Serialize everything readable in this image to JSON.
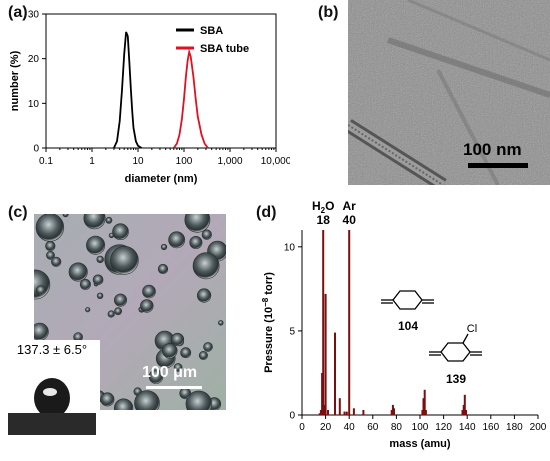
{
  "panels": {
    "a": {
      "letter": "(a)",
      "chart_data": {
        "type": "line",
        "xscale": "log",
        "xlim": [
          0.1,
          10000
        ],
        "ylim": [
          0,
          30
        ],
        "xticks": [
          "0.1",
          "1",
          "10",
          "100",
          "1,000",
          "10,000"
        ],
        "yticks": [
          "0",
          "10",
          "20",
          "30"
        ],
        "xlabel": "diameter (nm)",
        "ylabel": "number (%)",
        "legend_position": "top-right",
        "series": [
          {
            "name": "SBA",
            "color": "#000000",
            "x": [
              3.0,
              3.5,
              4.0,
              4.5,
              5.0,
              5.5,
              6.0,
              6.5,
              7.0,
              7.5,
              8.0,
              9.0,
              10.0,
              12.0
            ],
            "y": [
              0,
              1.5,
              6,
              13,
              21,
              26,
              25,
              19,
              13,
              8,
              4.5,
              1.5,
              0.5,
              0
            ]
          },
          {
            "name": "SBA tube",
            "color": "#e01020",
            "x": [
              60,
              70,
              80,
              90,
              100,
              110,
              120,
              130,
              140,
              160,
              180,
              200,
              240,
              280,
              330
            ],
            "y": [
              0,
              1,
              3,
              6.5,
              11,
              16,
              19.5,
              21.5,
              20.5,
              16,
              11,
              7,
              3,
              1,
              0
            ]
          }
        ]
      }
    },
    "b": {
      "letter": "(b)",
      "scale_bar": "100 nm"
    },
    "c": {
      "letter": "(c)",
      "scale_bar": "100 μm",
      "contact_angle": "137.3 ± 6.5°"
    },
    "d": {
      "letter": "(d)",
      "chart_data": {
        "type": "bar",
        "xlim": [
          0,
          200
        ],
        "ylim": [
          0,
          11
        ],
        "xticks": [
          "0",
          "20",
          "40",
          "60",
          "80",
          "100",
          "120",
          "140",
          "160",
          "180",
          "200"
        ],
        "yticks": [
          "0",
          "5",
          "10"
        ],
        "xlabel": "mass (amu)",
        "ylabel_prefix": "Pressure (10",
        "ylabel_sup": "−8",
        "ylabel_suffix": " torr)",
        "color": "#7a0f0f",
        "series": [
          {
            "mass": [
              15,
              16,
              17,
              18,
              19,
              20,
              22,
              28,
              32,
              36,
              38,
              40,
              44,
              52,
              76,
              77,
              78,
              102,
              103,
              104,
              105,
              136,
              137,
              138,
              139
            ],
            "pressure": [
              0.1,
              0.3,
              2.5,
              11.0,
              0.6,
              7.2,
              0.3,
              4.9,
              1.0,
              0.2,
              0.2,
              11.0,
              0.4,
              0.3,
              0.3,
              0.6,
              0.4,
              0.3,
              1.0,
              1.5,
              0.3,
              0.3,
              0.6,
              1.2,
              0.3
            ]
          }
        ],
        "annotations": [
          {
            "label": "H",
            "sub": "2",
            "rest": "O",
            "value": "18"
          },
          {
            "label": "Ar",
            "sub": "",
            "rest": "",
            "value": "40"
          }
        ],
        "molecules": [
          "104",
          "139"
        ],
        "cl_label": "Cl"
      }
    }
  }
}
